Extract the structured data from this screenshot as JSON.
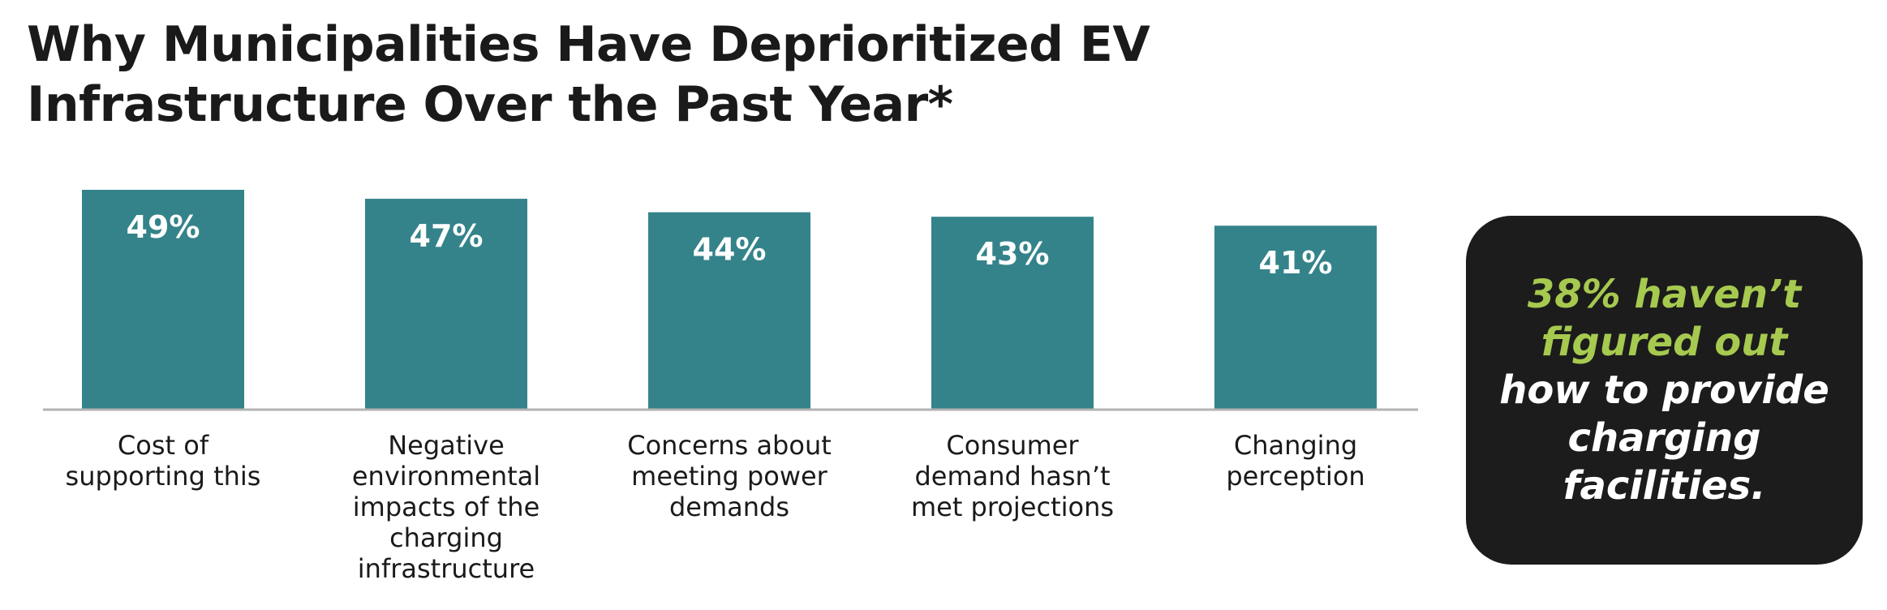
{
  "title_lines": [
    "Why Municipalities Have Deprioritized EV",
    "Infrastructure Over the Past Year*"
  ],
  "colors": {
    "bar": "#34838a",
    "baseline": "#b3b3b3",
    "callout_bg": "#1c1c1c",
    "callout_accent": "#a6c94f",
    "callout_text": "#ffffff"
  },
  "chart_data": {
    "type": "bar",
    "title": "Why Municipalities Have Deprioritized EV Infrastructure Over the Past Year*",
    "categories": [
      [
        "Cost of",
        "supporting this"
      ],
      [
        "Negative",
        "environmental",
        "impacts of the",
        "charging",
        "infrastructure"
      ],
      [
        "Concerns about",
        "meeting power",
        "demands"
      ],
      [
        "Consumer",
        "demand hasn’t",
        "met projections"
      ],
      [
        "Changing",
        "perception"
      ]
    ],
    "values": [
      49,
      47,
      44,
      43,
      41
    ],
    "data_labels": [
      "49%",
      "47%",
      "44%",
      "43%",
      "41%"
    ],
    "ylim": [
      0,
      49
    ],
    "grid": false,
    "legend": "none"
  },
  "callout": {
    "accent_lines": [
      "38% haven’t",
      "figured out"
    ],
    "plain_lines": [
      "how to provide",
      "charging",
      "facilities."
    ]
  }
}
